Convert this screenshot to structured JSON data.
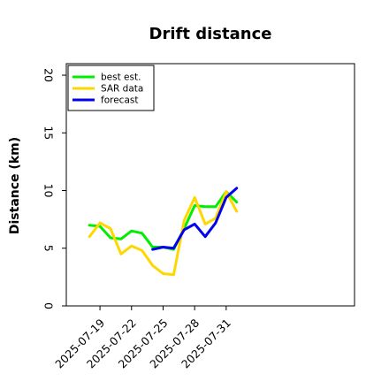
{
  "chart_data": {
    "type": "line",
    "title": "Drift distance",
    "xlabel": "",
    "ylabel": "Distance (km)",
    "ylim": [
      0,
      21
    ],
    "yticks": [
      0,
      5,
      10,
      15,
      20
    ],
    "xlim": [
      -2.2,
      25.2
    ],
    "xtick_labels": [
      "2025-07-19",
      "2025-07-22",
      "2025-07-25",
      "2025-07-28",
      "2025-07-31"
    ],
    "xtick_values": [
      1,
      4,
      7,
      10,
      13
    ],
    "grid": false,
    "legend_position": "top-left",
    "series": [
      {
        "name": "best est.",
        "color": "#00ee00",
        "x": [
          0,
          1,
          2,
          3,
          4,
          5,
          6,
          7,
          8,
          9,
          10,
          11,
          12,
          13,
          14
        ],
        "values": [
          7.0,
          6.9,
          5.9,
          5.8,
          6.5,
          6.3,
          5.1,
          5.1,
          4.9,
          6.7,
          8.7,
          8.6,
          8.6,
          9.9,
          9.0
        ]
      },
      {
        "name": "SAR data",
        "color": "#ffd700",
        "x": [
          0,
          1,
          2,
          3,
          4,
          5,
          6,
          7,
          8,
          9,
          10,
          11,
          12,
          13,
          14
        ],
        "values": [
          6.0,
          7.2,
          6.7,
          4.5,
          5.2,
          4.8,
          3.5,
          2.8,
          2.7,
          7.4,
          9.4,
          7.1,
          7.6,
          9.9,
          8.2
        ]
      },
      {
        "name": "forecast",
        "color": "#0000ee",
        "x": [
          6,
          7,
          8,
          9,
          10,
          11,
          12,
          13,
          14
        ],
        "values": [
          4.9,
          5.1,
          5.0,
          6.6,
          7.1,
          6.0,
          7.2,
          9.4,
          10.2
        ]
      }
    ]
  }
}
